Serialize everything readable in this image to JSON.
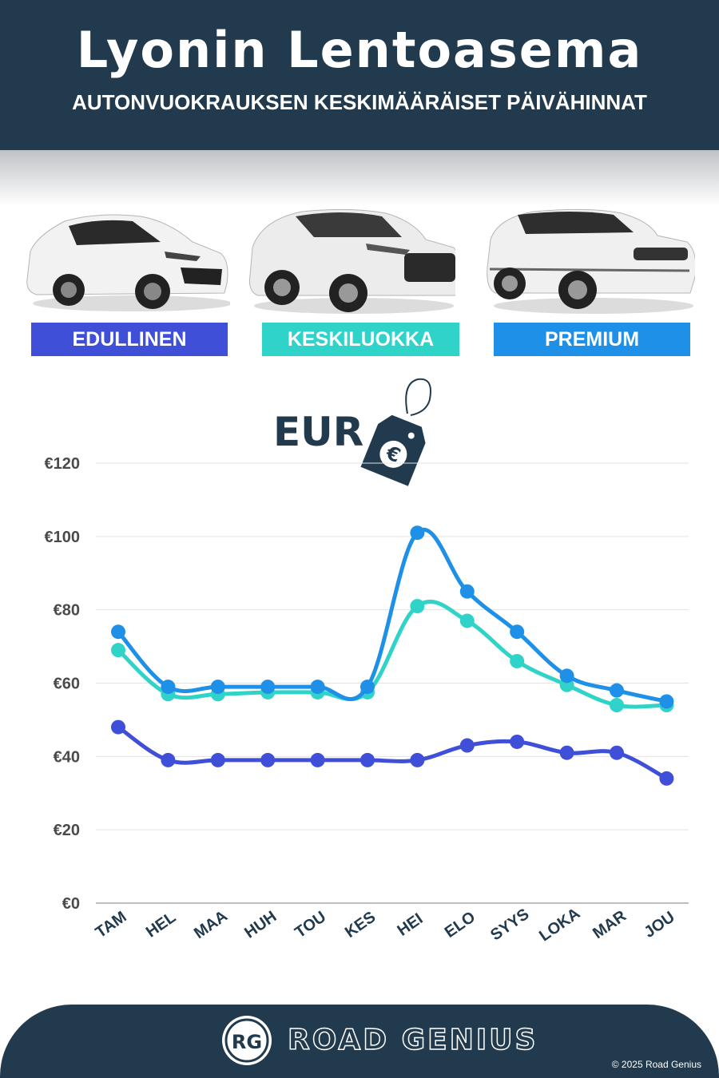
{
  "header": {
    "title": "Lyonin Lentoasema",
    "subtitle": "AUTONVUOKRAUKSEN KESKIMÄÄRÄISET PÄIVÄHINNAT"
  },
  "categories": [
    {
      "label": "EDULLINEN",
      "color": "#3f4fd8"
    },
    {
      "label": "KESKILUOKKA",
      "color": "#2fd3c8"
    },
    {
      "label": "PREMIUM",
      "color": "#1e90e8"
    }
  ],
  "currency_label": "EUR",
  "currency_icon": "euro-price-tag-icon",
  "chart_data": {
    "type": "line",
    "title": "",
    "xlabel": "",
    "ylabel": "",
    "categories": [
      "TAM",
      "HEL",
      "MAA",
      "HUH",
      "TOU",
      "KES",
      "HEI",
      "ELO",
      "SYYS",
      "LOKA",
      "MAR",
      "JOU"
    ],
    "y_ticks": [
      "€0",
      "€20",
      "€40",
      "€60",
      "€80",
      "€100",
      "€120"
    ],
    "ylim": [
      0,
      120
    ],
    "grid": true,
    "series": [
      {
        "name": "EDULLINEN",
        "color": "#3f4fd8",
        "values": [
          48,
          39,
          39,
          39,
          39,
          39,
          39,
          43,
          44,
          41,
          41,
          34
        ]
      },
      {
        "name": "KESKILUOKKA",
        "color": "#2fd3c8",
        "values": [
          69,
          57,
          57,
          57.5,
          57.5,
          57.5,
          81,
          77,
          66,
          59.5,
          54,
          54
        ]
      },
      {
        "name": "PREMIUM",
        "color": "#1e90e8",
        "values": [
          74,
          59,
          59,
          59,
          59,
          59,
          101,
          85,
          74,
          62,
          58,
          55
        ]
      }
    ]
  },
  "footer": {
    "logo_initials": "RG",
    "brand": "ROAD GENIUS",
    "copyright": "© 2025 Road Genius"
  }
}
